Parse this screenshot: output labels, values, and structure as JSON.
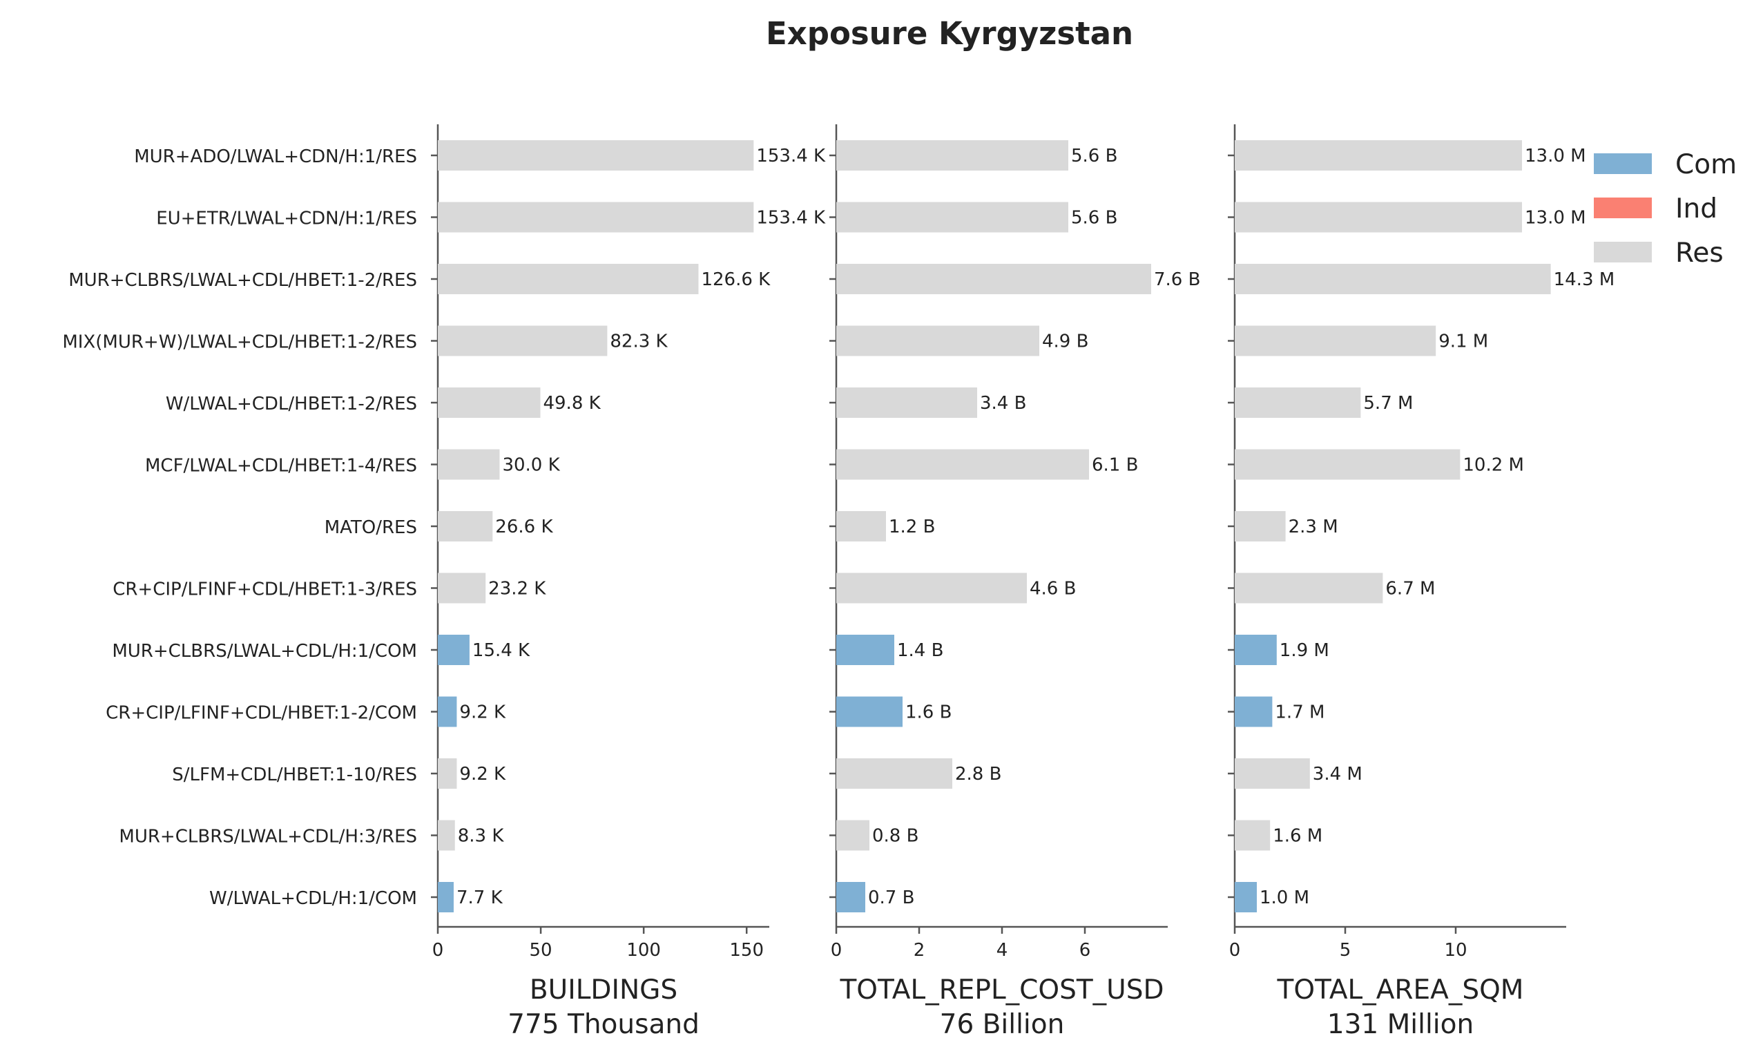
{
  "chart_data": {
    "type": "bar",
    "orientation": "horizontal",
    "title": "Exposure Kyrgyzstan",
    "categories": [
      "MUR+ADO/LWAL+CDN/H:1/RES",
      "EU+ETR/LWAL+CDN/H:1/RES",
      "MUR+CLBRS/LWAL+CDL/HBET:1-2/RES",
      "MIX(MUR+W)/LWAL+CDL/HBET:1-2/RES",
      "W/LWAL+CDL/HBET:1-2/RES",
      "MCF/LWAL+CDL/HBET:1-4/RES",
      "MATO/RES",
      "CR+CIP/LFINF+CDL/HBET:1-3/RES",
      "MUR+CLBRS/LWAL+CDL/H:1/COM",
      "CR+CIP/LFINF+CDL/HBET:1-2/COM",
      "S/LFM+CDL/HBET:1-10/RES",
      "MUR+CLBRS/LWAL+CDL/H:3/RES",
      "W/LWAL+CDL/H:1/COM"
    ],
    "occupancy": [
      "Res",
      "Res",
      "Res",
      "Res",
      "Res",
      "Res",
      "Res",
      "Res",
      "Com",
      "Com",
      "Res",
      "Res",
      "Com"
    ],
    "legend": {
      "placement": "top-right",
      "entries": [
        {
          "name": "Com",
          "color": "#7fb0d4"
        },
        {
          "name": "Ind",
          "color": "#fa8072"
        },
        {
          "name": "Res",
          "color": "#d9d9d9"
        }
      ]
    },
    "panels": [
      {
        "xlabel": "BUILDINGS",
        "subtitle": "775 Thousand",
        "values": [
          153.4,
          153.4,
          126.6,
          82.3,
          49.8,
          30.0,
          26.6,
          23.2,
          15.4,
          9.2,
          9.2,
          8.3,
          7.7
        ],
        "labels": [
          "153.4 K",
          "153.4 K",
          "126.6 K",
          "82.3 K",
          "49.8 K",
          "30.0 K",
          "26.6 K",
          "23.2 K",
          "15.4 K",
          "9.2 K",
          "9.2 K",
          "8.3 K",
          "7.7 K"
        ],
        "xticks": [
          "0",
          "50",
          "100",
          "150"
        ],
        "xlim": [
          0,
          161
        ]
      },
      {
        "xlabel": "TOTAL_REPL_COST_USD",
        "subtitle": "76 Billion",
        "values": [
          5.6,
          5.6,
          7.6,
          4.9,
          3.4,
          6.1,
          1.2,
          4.6,
          1.4,
          1.6,
          2.8,
          0.8,
          0.7
        ],
        "labels": [
          "5.6 B",
          "5.6 B",
          "7.6 B",
          "4.9 B",
          "3.4 B",
          "6.1 B",
          "1.2 B",
          "4.6 B",
          "1.4 B",
          "1.6 B",
          "2.8 B",
          "0.8 B",
          "0.7 B"
        ],
        "xticks": [
          "0",
          "2",
          "4",
          "6"
        ],
        "xlim": [
          0,
          8.0
        ]
      },
      {
        "xlabel": "TOTAL_AREA_SQM",
        "subtitle": "131 Million",
        "values": [
          13.0,
          13.0,
          14.3,
          9.1,
          5.7,
          10.2,
          2.3,
          6.7,
          1.9,
          1.7,
          3.4,
          1.6,
          1.0
        ],
        "labels": [
          "13.0 M",
          "13.0 M",
          "14.3 M",
          "9.1 M",
          "5.7 M",
          "10.2 M",
          "2.3 M",
          "6.7 M",
          "1.9 M",
          "1.7 M",
          "3.4 M",
          "1.6 M",
          "1.0 M"
        ],
        "xticks": [
          "0",
          "5",
          "10"
        ],
        "xlim": [
          0,
          15.0
        ]
      }
    ],
    "grid": false
  }
}
